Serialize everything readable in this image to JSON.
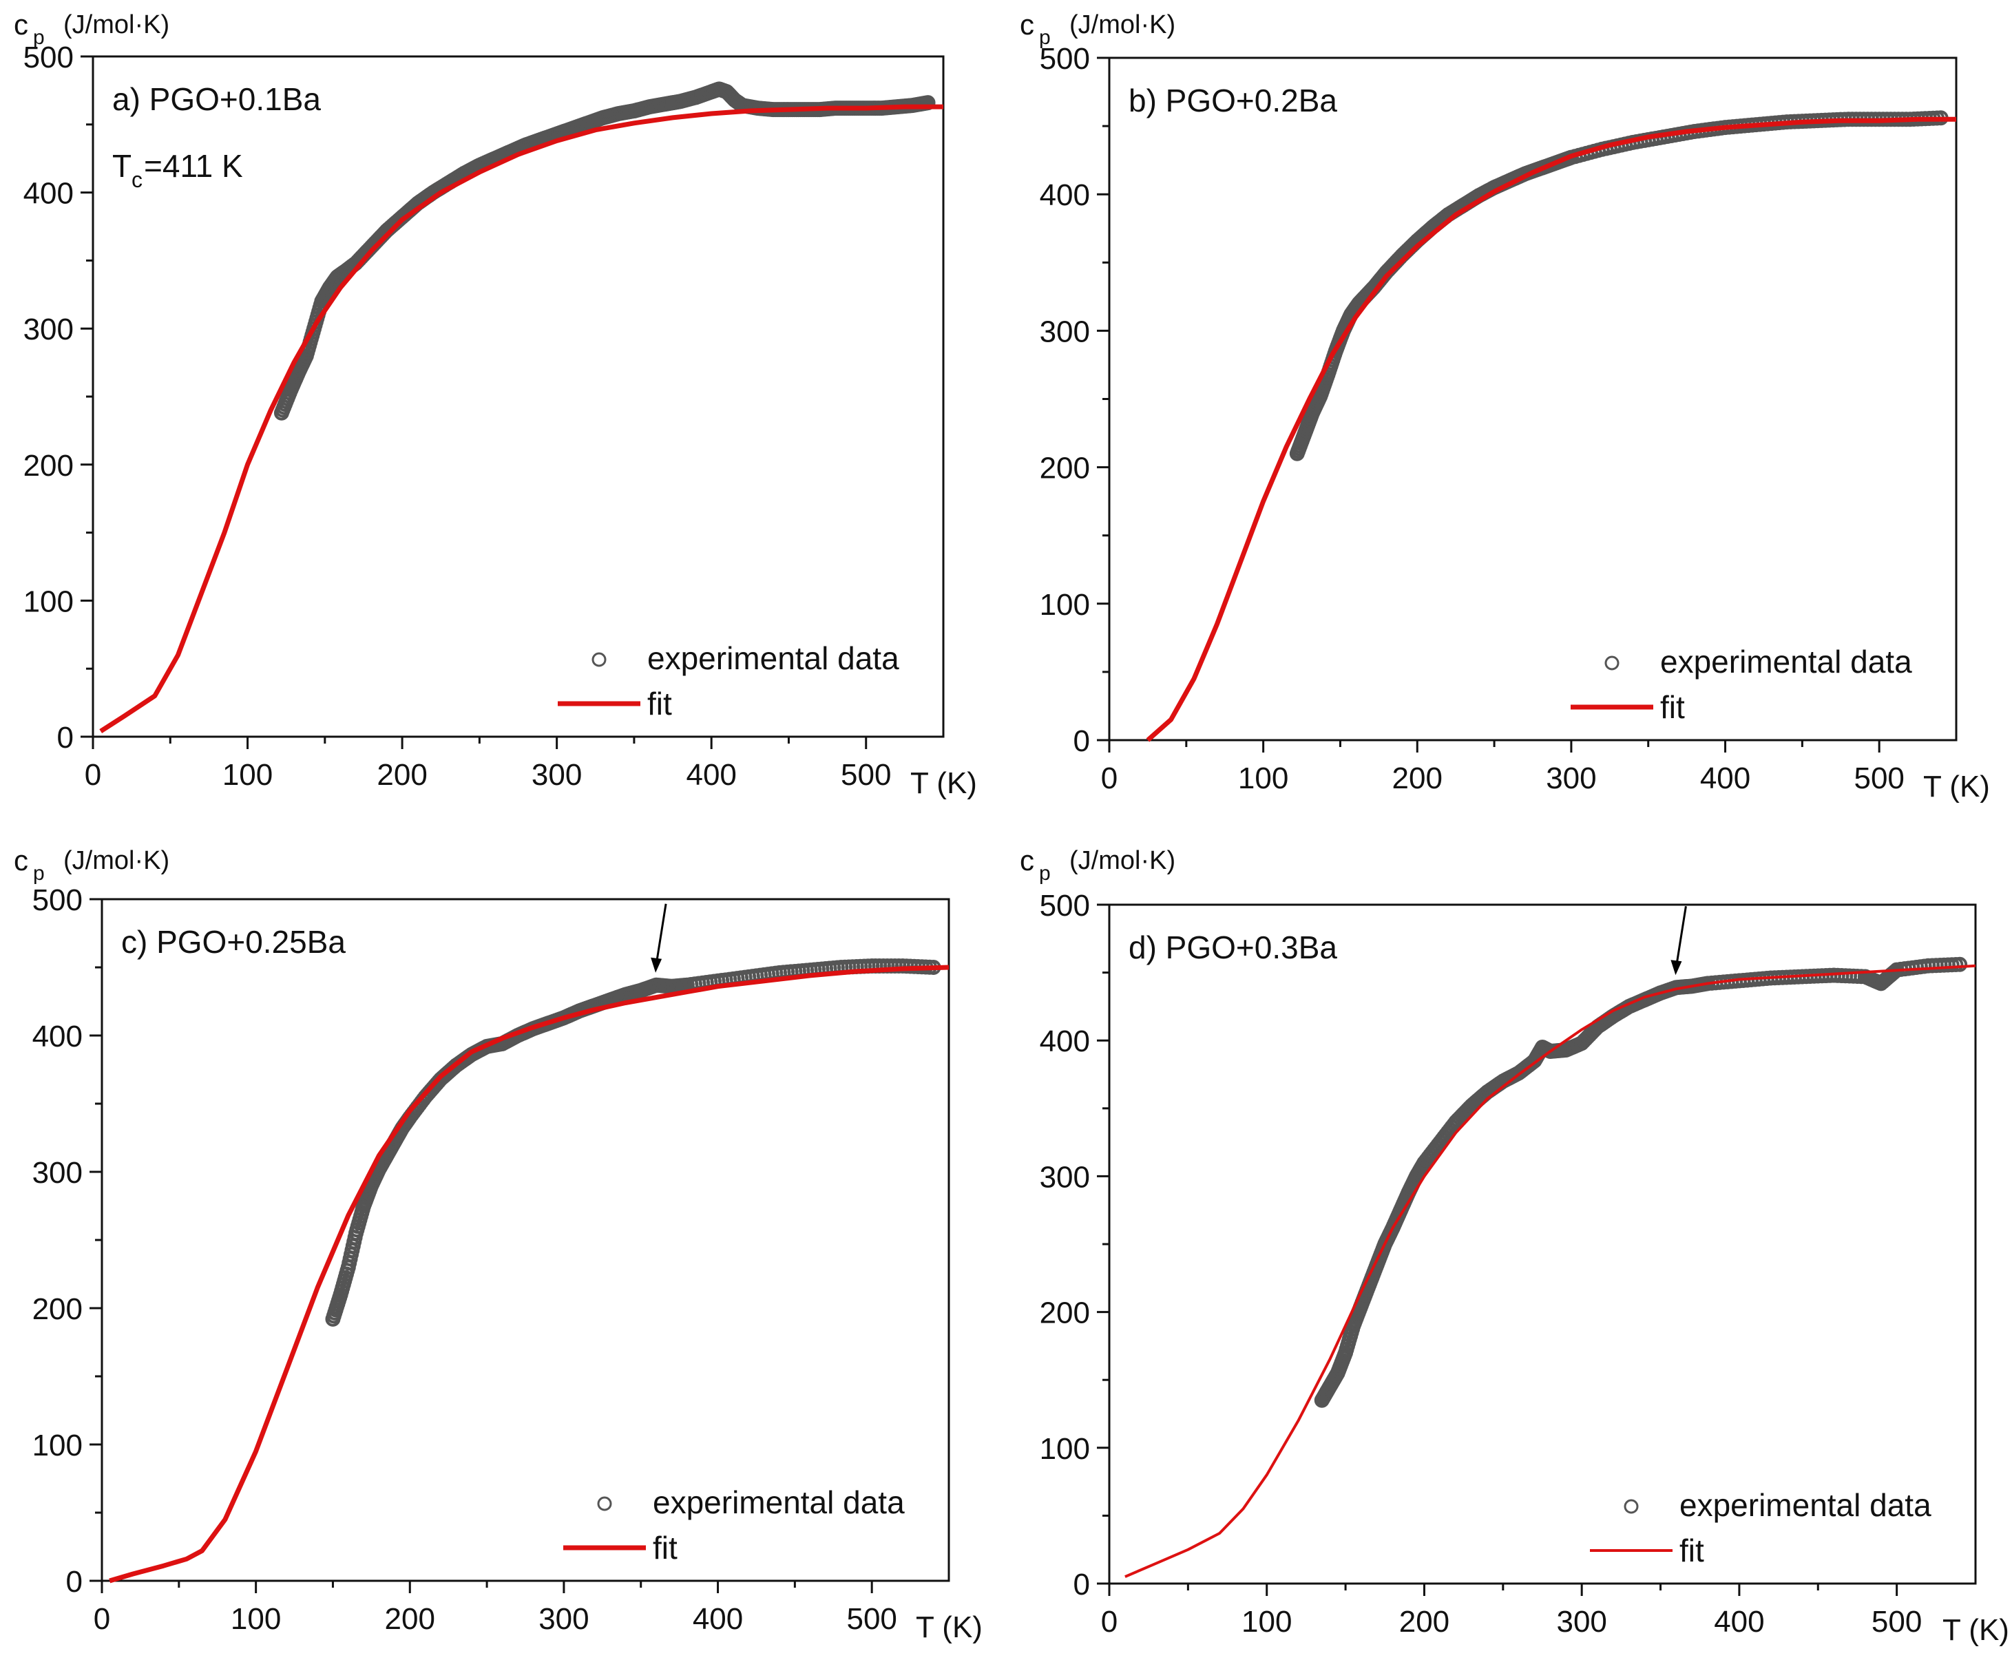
{
  "figure": {
    "description_free": true
  },
  "chart_data": [
    {
      "panel": "a",
      "type": "scatter",
      "title": "a) PGO+0.1Ba",
      "annotation": {
        "text": "T",
        "sub": "c",
        "rest": " =411 K"
      },
      "ylabel": {
        "main": "c",
        "sub": "p",
        "unit": "(J/mol·K)"
      },
      "xlabel": "T (K)",
      "xlim": [
        0,
        550
      ],
      "ylim": [
        0,
        500
      ],
      "xticks": [
        0,
        100,
        200,
        300,
        400,
        500
      ],
      "yticks": [
        0,
        100,
        200,
        300,
        400,
        500
      ],
      "legend": {
        "experimental": "experimental data",
        "fit": "fit"
      },
      "colors": {
        "data": "#555555",
        "fit": "#dd1111"
      },
      "experimental": {
        "x": [
          122,
          128,
          133,
          138,
          143,
          148,
          153,
          158,
          163,
          170,
          180,
          190,
          200,
          210,
          220,
          230,
          240,
          250,
          260,
          270,
          280,
          290,
          300,
          310,
          320,
          330,
          340,
          350,
          360,
          370,
          380,
          390,
          400,
          405,
          410,
          415,
          420,
          430,
          440,
          450,
          460,
          470,
          480,
          490,
          500,
          510,
          520,
          530,
          540
        ],
        "y": [
          238,
          255,
          268,
          280,
          300,
          320,
          330,
          338,
          342,
          348,
          360,
          372,
          382,
          392,
          400,
          407,
          414,
          420,
          425,
          430,
          435,
          439,
          443,
          447,
          451,
          455,
          458,
          460,
          463,
          465,
          467,
          470,
          474,
          476,
          474,
          468,
          464,
          462,
          461,
          461,
          461,
          461,
          462,
          462,
          462,
          462,
          463,
          464,
          466
        ]
      },
      "fit": {
        "x": [
          5,
          20,
          40,
          55,
          70,
          85,
          100,
          115,
          130,
          145,
          160,
          180,
          200,
          225,
          250,
          275,
          300,
          325,
          350,
          375,
          400,
          425,
          450,
          475,
          500,
          525,
          550
        ],
        "y": [
          4,
          15,
          30,
          60,
          105,
          150,
          200,
          240,
          275,
          305,
          330,
          357,
          380,
          400,
          415,
          428,
          438,
          446,
          451,
          455,
          458,
          460,
          461,
          462,
          462,
          463,
          463
        ]
      }
    },
    {
      "panel": "b",
      "type": "scatter",
      "title": "b) PGO+0.2Ba",
      "ylabel": {
        "main": "c",
        "sub": "p",
        "unit": "(J/mol·K)"
      },
      "xlabel": "T (K)",
      "xlim": [
        0,
        550
      ],
      "ylim": [
        0,
        500
      ],
      "xticks": [
        0,
        100,
        200,
        300,
        400,
        500
      ],
      "yticks": [
        0,
        100,
        200,
        300,
        400,
        500
      ],
      "legend": {
        "experimental": "experimental data",
        "fit": "fit"
      },
      "colors": {
        "data": "#555555",
        "fit": "#dd1111"
      },
      "experimental": {
        "x": [
          122,
          127,
          132,
          137,
          142,
          147,
          152,
          157,
          162,
          167,
          172,
          180,
          190,
          200,
          210,
          220,
          230,
          240,
          250,
          260,
          270,
          280,
          290,
          300,
          320,
          340,
          360,
          380,
          400,
          420,
          440,
          460,
          480,
          500,
          520,
          540
        ],
        "y": [
          210,
          225,
          240,
          252,
          268,
          285,
          300,
          312,
          320,
          326,
          332,
          343,
          355,
          366,
          376,
          385,
          392,
          399,
          405,
          410,
          415,
          419,
          423,
          427,
          433,
          438,
          442,
          446,
          449,
          451,
          453,
          454,
          455,
          455,
          455,
          456
        ]
      },
      "fit": {
        "x": [
          25,
          40,
          55,
          70,
          85,
          100,
          115,
          130,
          145,
          160,
          180,
          200,
          225,
          250,
          275,
          300,
          325,
          350,
          375,
          400,
          425,
          450,
          475,
          500,
          525,
          550
        ],
        "y": [
          0,
          15,
          45,
          85,
          130,
          175,
          215,
          250,
          283,
          310,
          340,
          362,
          385,
          402,
          416,
          428,
          436,
          442,
          446,
          449,
          451,
          453,
          454,
          454,
          455,
          455
        ]
      }
    },
    {
      "panel": "c",
      "type": "scatter",
      "title": "c) PGO+0.25Ba",
      "ylabel": {
        "main": "c",
        "sub": "p",
        "unit": "(J/mol·K)"
      },
      "xlabel": "T (K)",
      "xlim": [
        0,
        550
      ],
      "ylim": [
        0,
        500
      ],
      "xticks": [
        0,
        100,
        200,
        300,
        400,
        500
      ],
      "yticks": [
        0,
        100,
        200,
        300,
        400,
        500
      ],
      "legend": {
        "experimental": "experimental data",
        "fit": "fit"
      },
      "colors": {
        "data": "#555555",
        "fit": "#dd1111",
        "arrow": "#000000"
      },
      "arrow_at_x": 360,
      "experimental": {
        "x": [
          150,
          155,
          160,
          165,
          170,
          175,
          180,
          185,
          190,
          195,
          200,
          210,
          220,
          230,
          240,
          250,
          260,
          270,
          280,
          290,
          300,
          310,
          320,
          330,
          340,
          350,
          360,
          370,
          380,
          400,
          420,
          440,
          460,
          480,
          500,
          520,
          540
        ],
        "y": [
          192,
          210,
          230,
          255,
          275,
          290,
          302,
          312,
          322,
          332,
          340,
          355,
          368,
          378,
          386,
          392,
          394,
          400,
          405,
          409,
          413,
          418,
          422,
          426,
          430,
          433,
          437,
          436,
          437,
          440,
          443,
          446,
          448,
          450,
          451,
          451,
          450
        ]
      },
      "fit": {
        "x": [
          5,
          20,
          40,
          55,
          65,
          80,
          100,
          120,
          140,
          160,
          180,
          200,
          220,
          240,
          260,
          280,
          300,
          320,
          340,
          360,
          380,
          400,
          430,
          460,
          490,
          520,
          550
        ],
        "y": [
          0,
          5,
          11,
          16,
          22,
          45,
          95,
          155,
          215,
          268,
          312,
          345,
          370,
          388,
          398,
          406,
          413,
          419,
          424,
          428,
          432,
          436,
          440,
          444,
          447,
          449,
          450
        ]
      }
    },
    {
      "panel": "d",
      "type": "scatter",
      "title": "d) PGO+0.3Ba",
      "ylabel": {
        "main": "c",
        "sub": "p",
        "unit": "(J/mol·K)"
      },
      "xlabel": "T (K)",
      "xlim": [
        0,
        550
      ],
      "ylim": [
        0,
        500
      ],
      "xticks": [
        0,
        100,
        200,
        300,
        400,
        500
      ],
      "yticks": [
        0,
        100,
        200,
        300,
        400,
        500
      ],
      "legend": {
        "experimental": "experimental data",
        "fit": "fit"
      },
      "colors": {
        "data": "#555555",
        "fit": "#dd1111",
        "arrow": "#000000"
      },
      "arrow_at_x": 360,
      "experimental": {
        "x": [
          135,
          140,
          145,
          150,
          155,
          160,
          165,
          170,
          175,
          180,
          185,
          190,
          195,
          200,
          210,
          220,
          230,
          240,
          250,
          260,
          270,
          275,
          280,
          290,
          300,
          310,
          320,
          330,
          340,
          350,
          360,
          370,
          380,
          400,
          420,
          440,
          460,
          480,
          490,
          500,
          520,
          540
        ],
        "y": [
          135,
          145,
          155,
          170,
          190,
          205,
          220,
          235,
          250,
          262,
          275,
          288,
          300,
          310,
          325,
          340,
          352,
          362,
          370,
          376,
          385,
          395,
          392,
          393,
          398,
          410,
          418,
          425,
          430,
          435,
          439,
          440,
          442,
          444,
          446,
          447,
          448,
          447,
          442,
          452,
          455,
          456
        ]
      },
      "fit": {
        "x": [
          10,
          30,
          50,
          70,
          85,
          100,
          120,
          140,
          160,
          180,
          200,
          220,
          240,
          260,
          280,
          300,
          320,
          340,
          360,
          380,
          400,
          430,
          460,
          490,
          520,
          550
        ],
        "y": [
          5,
          15,
          25,
          37,
          55,
          80,
          120,
          165,
          215,
          262,
          300,
          332,
          357,
          375,
          392,
          408,
          422,
          432,
          438,
          442,
          445,
          447,
          449,
          451,
          453,
          455
        ]
      }
    }
  ]
}
